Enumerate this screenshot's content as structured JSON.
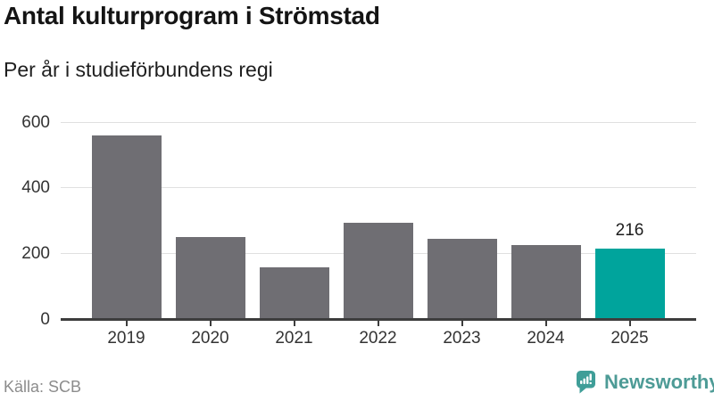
{
  "header": {
    "title": "Antal kulturprogram i Strömstad",
    "subtitle": "Per år i studieförbundens regi"
  },
  "footer": {
    "source": "Källa: SCB",
    "brand": "Newsworthy"
  },
  "colors": {
    "bar": "#6f6e73",
    "highlight": "#00a49c",
    "grid": "#e0e0e0",
    "axis": "#3d3d3d",
    "brand": "#4d9b96",
    "brand_icon": "#3f9e98"
  },
  "chart_data": {
    "type": "bar",
    "title": "Antal kulturprogram i Strömstad",
    "subtitle": "Per år i studieförbundens regi",
    "source": "Källa: SCB",
    "categories": [
      "2019",
      "2020",
      "2021",
      "2022",
      "2023",
      "2024",
      "2025"
    ],
    "values": [
      560,
      252,
      161,
      295,
      246,
      228,
      216
    ],
    "highlight_index": 6,
    "data_labels": [
      "",
      "",
      "",
      "",
      "",
      "",
      "216"
    ],
    "yticks": [
      0,
      200,
      400,
      600
    ],
    "ylim": [
      0,
      650
    ],
    "xlabel": "",
    "ylabel": "",
    "grid": true,
    "legend": false,
    "bar_color": "#6f6e73",
    "highlight_color": "#00a49c"
  }
}
